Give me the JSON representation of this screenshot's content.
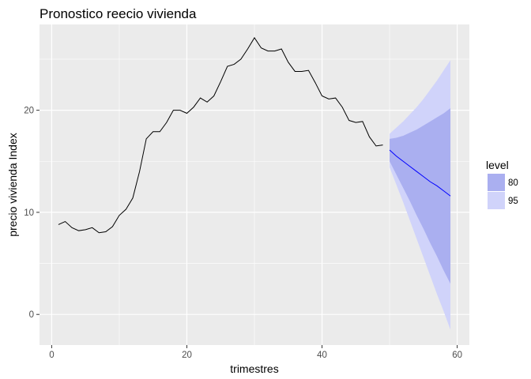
{
  "chart_data": {
    "type": "line",
    "title": "Pronostico reecio vivienda",
    "xlabel": "trimestres",
    "ylabel": "precio vivienda Index",
    "xlim": [
      -1.8,
      61.8
    ],
    "ylim": [
      -3.0,
      28.4
    ],
    "x_ticks": [
      0,
      20,
      40,
      60
    ],
    "y_ticks": [
      0,
      10,
      20
    ],
    "x_minor": [
      10,
      30,
      50
    ],
    "y_minor": [
      5,
      15,
      25
    ],
    "grid": true,
    "legend": {
      "title": "level",
      "placement": "right",
      "items": [
        {
          "label": "80",
          "color": "#aaaff0"
        },
        {
          "label": "95",
          "color": "#d0d3fa"
        }
      ]
    },
    "colors": {
      "panel": "#ebebeb",
      "grid": "#ffffff",
      "history_line": "#000000",
      "forecast_line": "#0000ff",
      "band80": "#aaaff0",
      "band95": "#d0d3fa"
    },
    "history": {
      "x": [
        1,
        2,
        3,
        4,
        5,
        6,
        7,
        8,
        9,
        10,
        11,
        12,
        13,
        14,
        15,
        16,
        17,
        18,
        19,
        20,
        21,
        22,
        23,
        24,
        25,
        26,
        27,
        28,
        29,
        30,
        31,
        32,
        33,
        34,
        35,
        36,
        37,
        38,
        39,
        40,
        41,
        42,
        43,
        44,
        45,
        46,
        47,
        48,
        49
      ],
      "y": [
        8.8,
        9.1,
        8.5,
        8.2,
        8.3,
        8.5,
        8.0,
        8.1,
        8.6,
        9.7,
        10.3,
        11.4,
        14.0,
        17.2,
        17.9,
        17.9,
        18.8,
        20.0,
        20.0,
        19.7,
        20.3,
        21.2,
        20.8,
        21.4,
        22.8,
        24.3,
        24.5,
        25.0,
        26.0,
        27.1,
        26.1,
        25.8,
        25.8,
        26.0,
        24.7,
        23.8,
        23.8,
        23.9,
        22.7,
        21.4,
        21.1,
        21.2,
        20.3,
        19.0,
        18.8,
        18.9,
        17.4,
        16.5,
        16.6
      ]
    },
    "forecast": {
      "x": [
        50,
        51,
        52,
        53,
        54,
        55,
        56,
        57,
        58,
        59
      ],
      "mean": [
        16.1,
        15.5,
        15.0,
        14.5,
        14.0,
        13.5,
        13.0,
        12.6,
        12.1,
        11.6
      ],
      "lo80": [
        15.0,
        13.7,
        12.4,
        11.1,
        9.7,
        8.4,
        7.0,
        5.7,
        4.3,
        3.0
      ],
      "hi80": [
        17.2,
        17.3,
        17.5,
        17.8,
        18.1,
        18.5,
        18.9,
        19.3,
        19.7,
        20.2
      ],
      "lo95": [
        14.4,
        12.7,
        11.0,
        9.2,
        7.4,
        5.6,
        3.8,
        2.0,
        0.3,
        -1.5
      ],
      "hi95": [
        17.7,
        18.3,
        18.9,
        19.6,
        20.3,
        21.1,
        22.0,
        22.9,
        23.9,
        24.9
      ]
    }
  }
}
